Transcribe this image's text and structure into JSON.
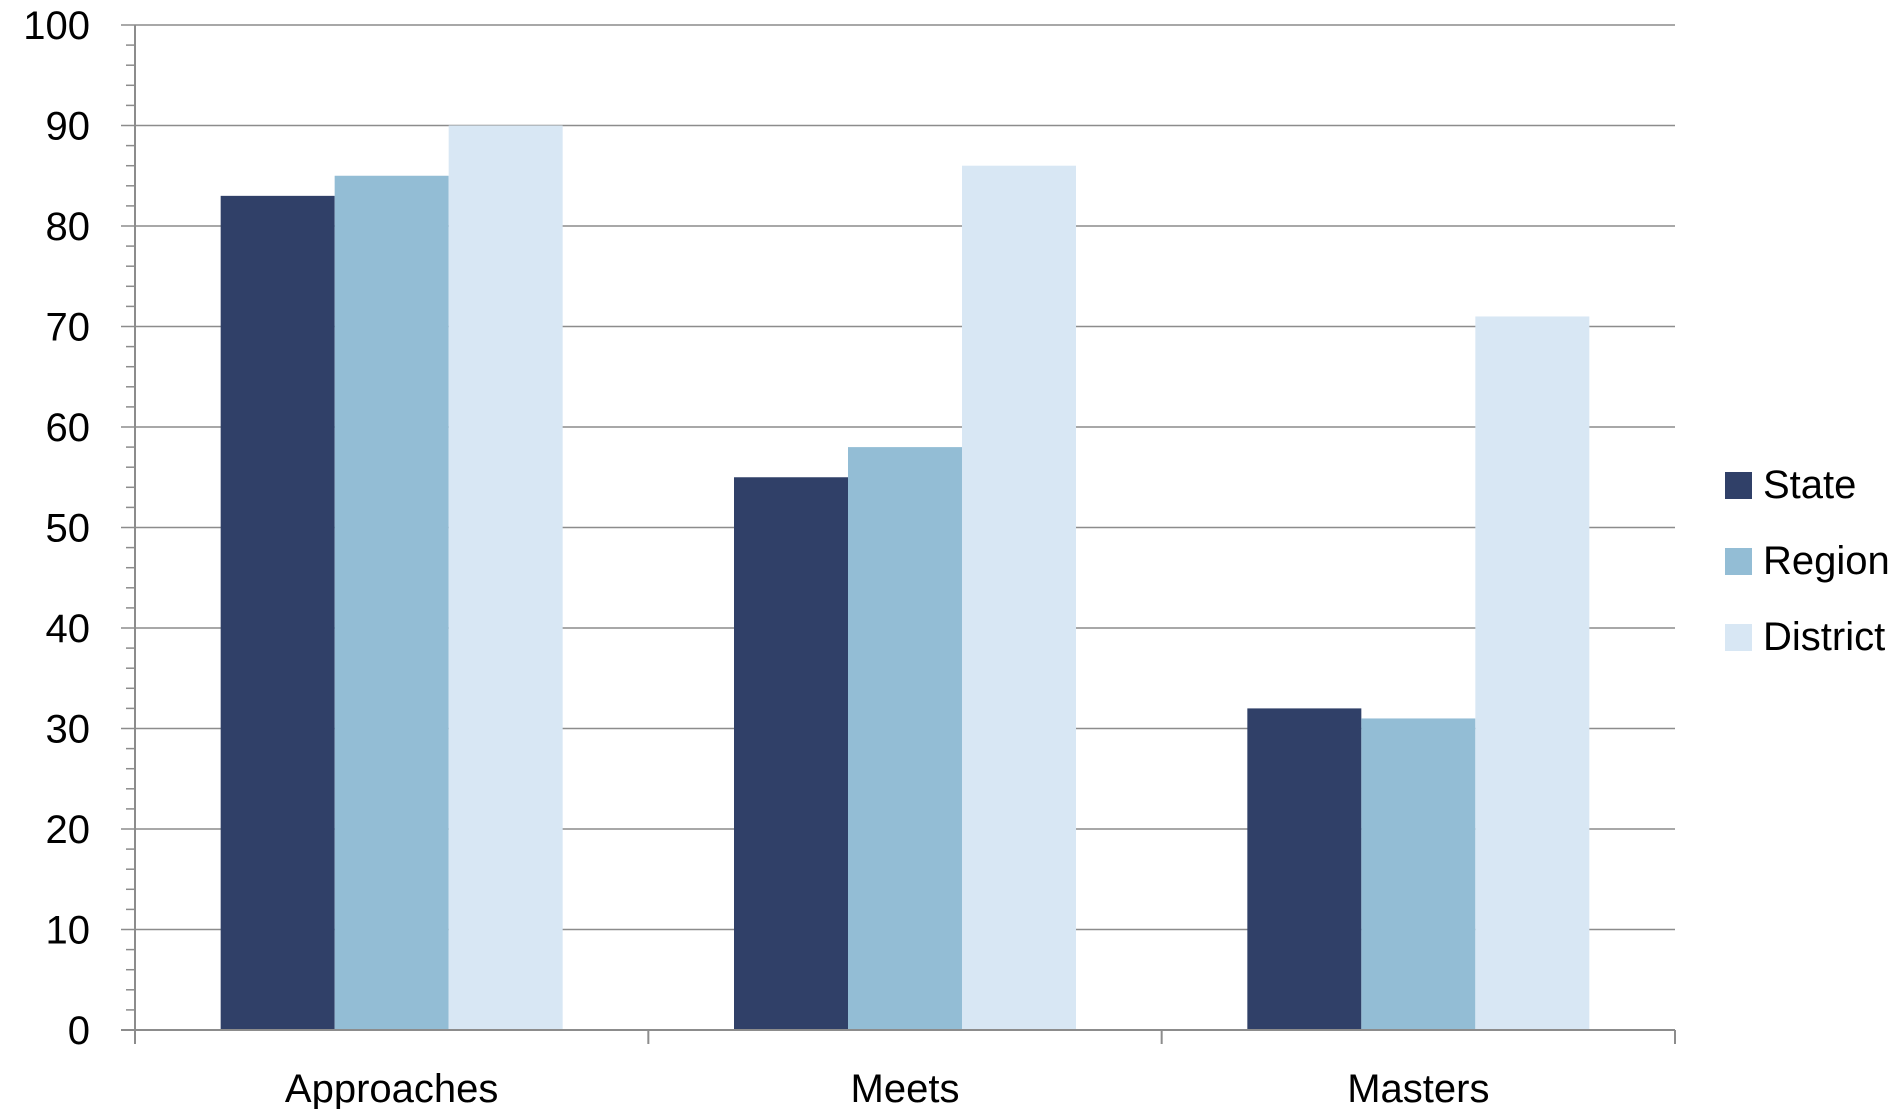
{
  "chart_data": {
    "type": "bar",
    "categories": [
      "Approaches",
      "Meets",
      "Masters"
    ],
    "series": [
      {
        "name": "State",
        "values": [
          83,
          55,
          32
        ],
        "color": "#304068"
      },
      {
        "name": "Region",
        "values": [
          85,
          58,
          31
        ],
        "color": "#93BDD5"
      },
      {
        "name": "District",
        "values": [
          90,
          86,
          71
        ],
        "color": "#D8E7F4"
      }
    ],
    "ylim": [
      0,
      100
    ],
    "yticks": [
      0,
      10,
      20,
      30,
      40,
      50,
      60,
      70,
      80,
      90,
      100
    ],
    "minor_tick_step": 2,
    "grid": true,
    "legend": "right",
    "grid_color": "#8C8C8C",
    "axis_color": "#8C8C8C"
  }
}
